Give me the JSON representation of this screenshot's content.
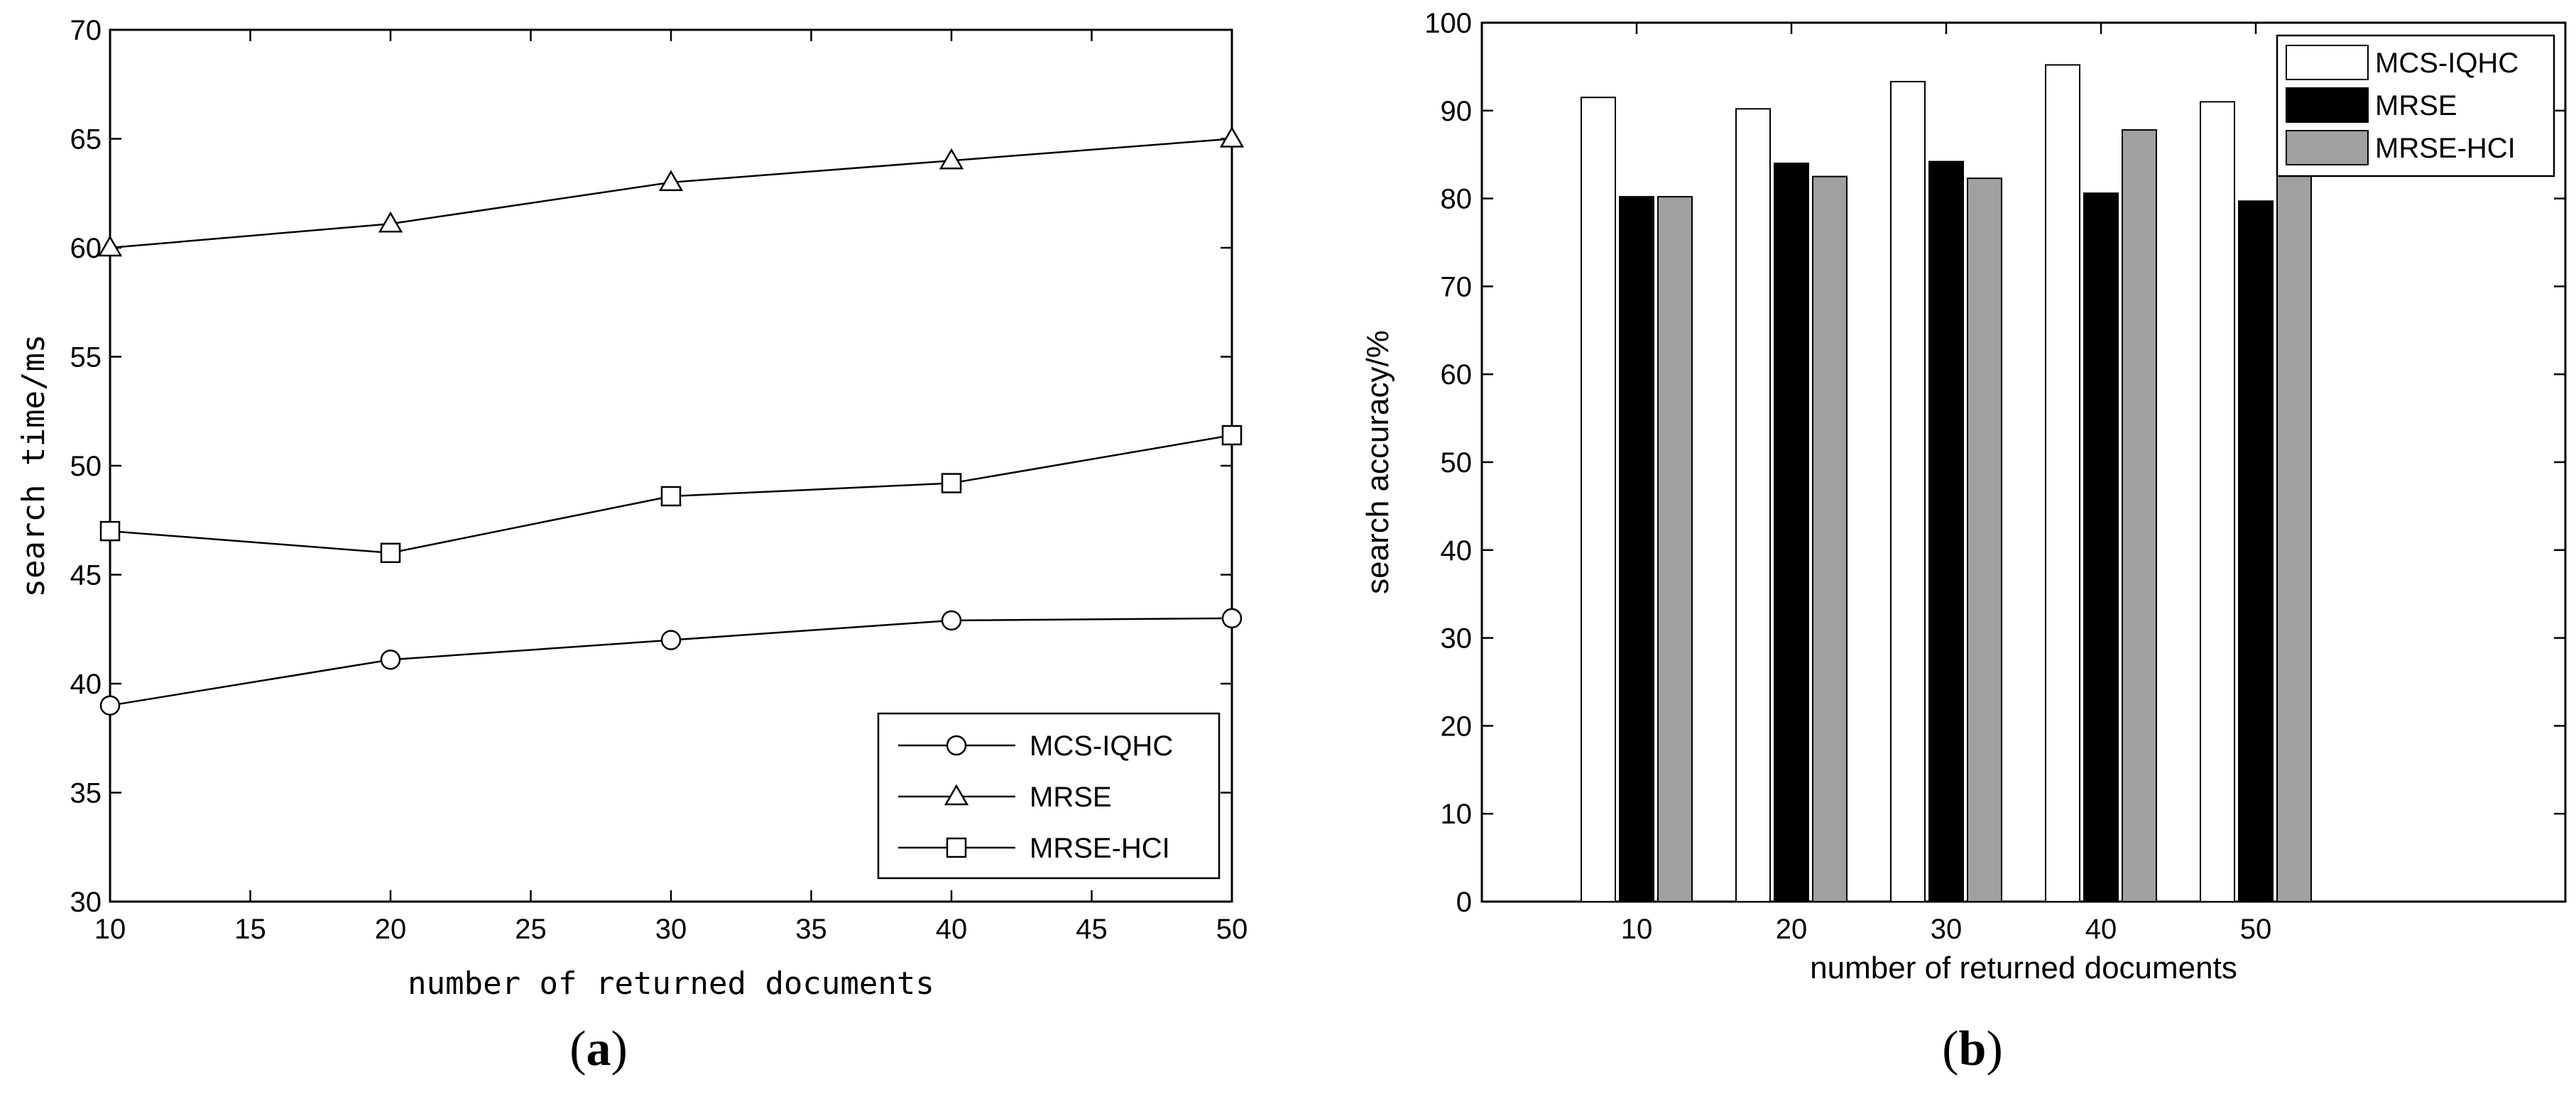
{
  "chart_data": [
    {
      "type": "line",
      "panel_label": "a",
      "xlabel": "number of returned documents",
      "ylabel": "search time/ms",
      "xlim": [
        10,
        50
      ],
      "ylim": [
        30,
        70
      ],
      "xticks": [
        10,
        15,
        20,
        25,
        30,
        35,
        40,
        45,
        50
      ],
      "yticks": [
        30,
        35,
        40,
        45,
        50,
        55,
        60,
        65,
        70
      ],
      "x": [
        10,
        20,
        30,
        40,
        50
      ],
      "series": [
        {
          "name": "MCS-IQHC",
          "marker": "circle",
          "values": [
            39.0,
            41.1,
            42.0,
            42.9,
            43.0
          ]
        },
        {
          "name": "MRSE",
          "marker": "triangle",
          "values": [
            60.0,
            61.1,
            63.0,
            64.0,
            65.0
          ]
        },
        {
          "name": "MRSE-HCI",
          "marker": "square",
          "values": [
            47.0,
            46.0,
            48.6,
            49.2,
            51.4
          ]
        }
      ],
      "legend_position": "bottom-right",
      "grid": false
    },
    {
      "type": "bar",
      "panel_label": "b",
      "xlabel": "number of returned documents",
      "ylabel": "search accuracy/%",
      "categories": [
        "10",
        "20",
        "30",
        "40",
        "50"
      ],
      "ylim": [
        0,
        100
      ],
      "yticks": [
        0,
        10,
        20,
        30,
        40,
        50,
        60,
        70,
        80,
        90,
        100
      ],
      "series": [
        {
          "name": "MCS-IQHC",
          "color": "#ffffff",
          "values": [
            91.5,
            90.2,
            93.3,
            95.2,
            91.0
          ]
        },
        {
          "name": "MRSE",
          "color": "#000000",
          "values": [
            80.2,
            84.0,
            84.2,
            80.6,
            79.7
          ]
        },
        {
          "name": "MRSE-HCI",
          "color": "#a0a0a0",
          "values": [
            80.2,
            82.5,
            82.3,
            87.8,
            90.0
          ]
        }
      ],
      "legend_position": "top-right",
      "grid": false
    }
  ]
}
